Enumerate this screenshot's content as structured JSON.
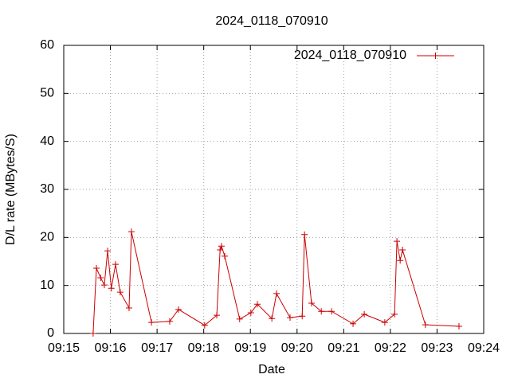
{
  "chart_data": {
    "type": "line",
    "title": "2024_0118_070910",
    "x_label": "Date",
    "y_label": "D/L rate (MBytes/S)",
    "xlim": [
      555,
      564
    ],
    "xticks": [
      {
        "value": 555,
        "label": "09:15"
      },
      {
        "value": 556,
        "label": "09:16"
      },
      {
        "value": 557,
        "label": "09:17"
      },
      {
        "value": 558,
        "label": "09:18"
      },
      {
        "value": 559,
        "label": "09:19"
      },
      {
        "value": 560,
        "label": "09:20"
      },
      {
        "value": 561,
        "label": "09:21"
      },
      {
        "value": 562,
        "label": "09:22"
      },
      {
        "value": 563,
        "label": "09:23"
      },
      {
        "value": 564,
        "label": "09:24"
      }
    ],
    "ylim": [
      0,
      60
    ],
    "yticks": [
      0,
      10,
      20,
      30,
      40,
      50,
      60
    ],
    "grid": true,
    "legend": "top-right",
    "x": [
      555.63,
      555.7,
      555.79,
      555.87,
      555.94,
      556.02,
      556.11,
      556.21,
      556.4,
      556.45,
      556.88,
      557.27,
      557.46,
      558.02,
      558.28,
      558.35,
      558.38,
      558.45,
      558.77,
      559.01,
      559.15,
      559.46,
      559.56,
      559.85,
      560.11,
      560.16,
      560.31,
      560.52,
      560.74,
      561.2,
      561.44,
      561.88,
      562.09,
      562.14,
      562.21,
      562.26,
      562.75,
      563.47
    ],
    "series": [
      {
        "name": "2024_0118_070910",
        "color": "#cc0000",
        "values": [
          0,
          13.6,
          11.6,
          10.1,
          17.2,
          9.4,
          14.4,
          8.6,
          5.3,
          21.2,
          2.3,
          2.5,
          5.0,
          1.7,
          3.8,
          17.4,
          18.2,
          16.1,
          3.0,
          4.3,
          6.1,
          3.1,
          8.3,
          3.3,
          3.6,
          20.6,
          6.3,
          4.6,
          4.6,
          2.0,
          4.0,
          2.3,
          4.0,
          19.2,
          15.2,
          17.4,
          1.8,
          1.5
        ]
      }
    ]
  }
}
